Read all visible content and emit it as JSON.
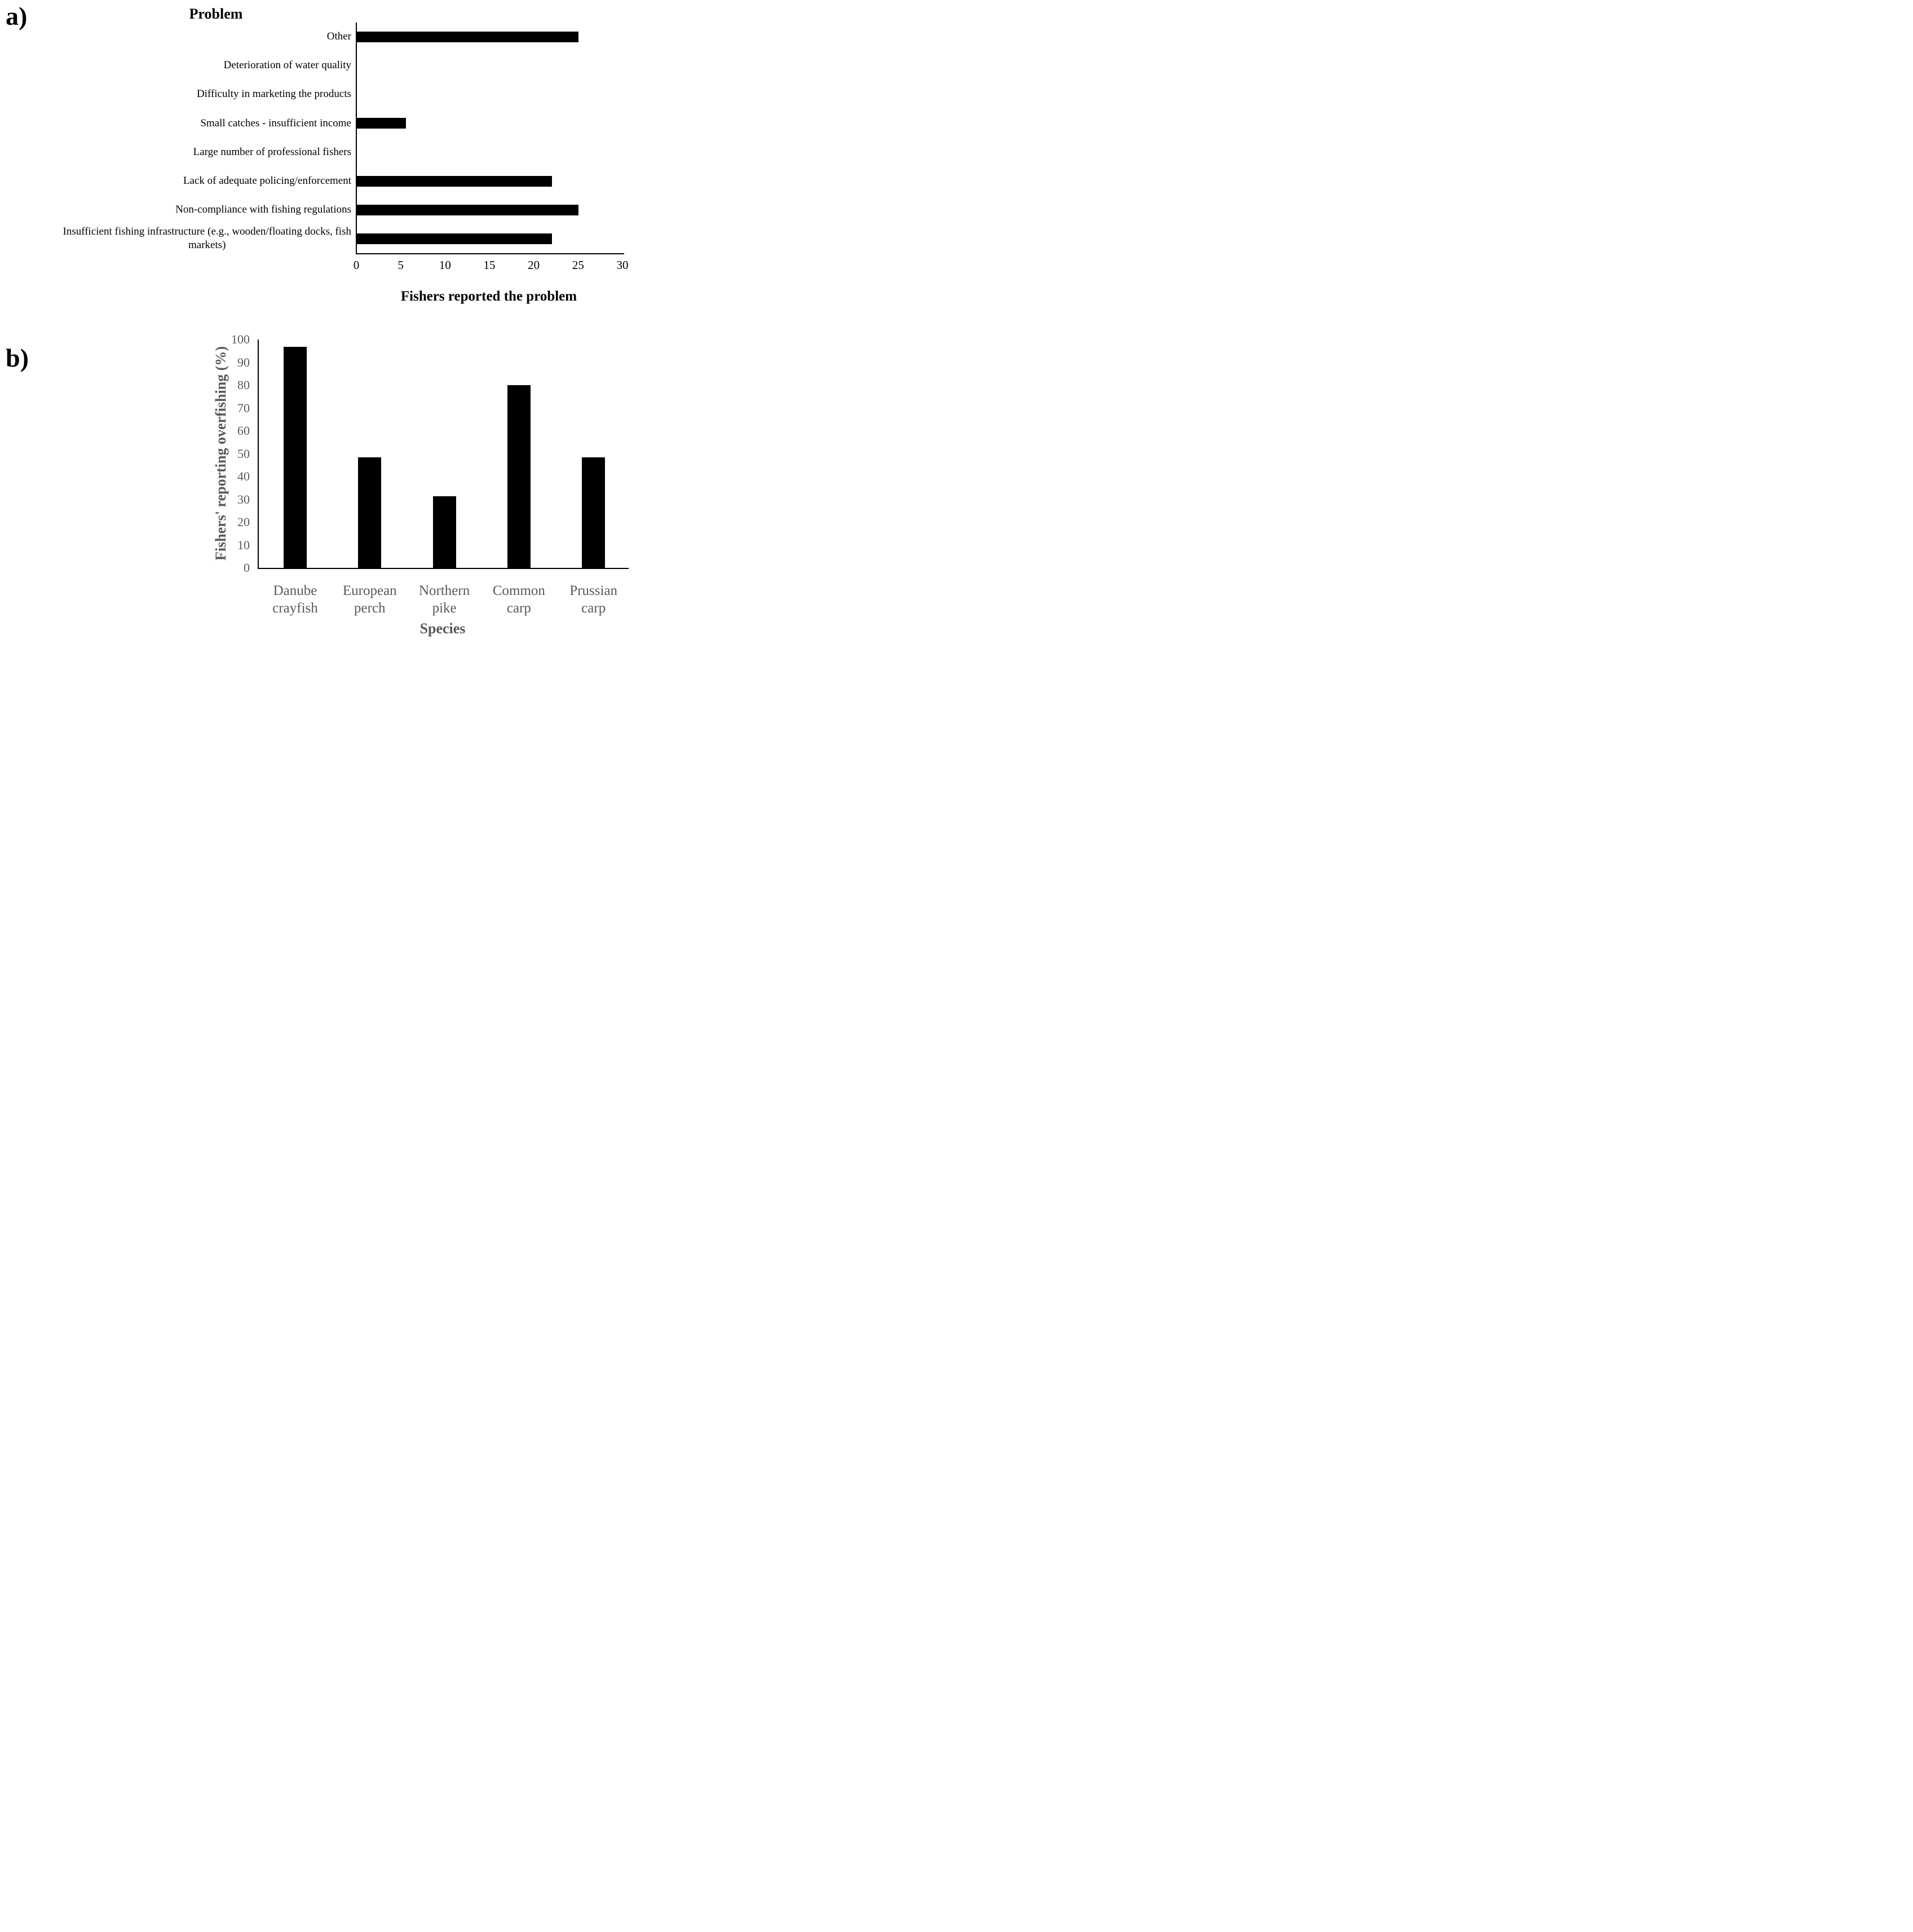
{
  "figure": {
    "panel_a_tag": "a)",
    "panel_b_tag": "b)"
  },
  "colors": {
    "bar": "#000000",
    "axis": "#000000",
    "panel_a_text": "#000000",
    "panel_b_text": "#595959"
  },
  "chart_data": [
    {
      "type": "bar",
      "orientation": "horizontal",
      "title": "Problem",
      "xlabel": "Fishers reported the problem",
      "categories": [
        "Other",
        "Deterioration of water quality",
        "Difficulty in marketing the products",
        "Small catches - insufficient income",
        "Large number of professional fishers",
        "Lack of adequate policing/enforcement",
        "Non-compliance with fishing regulations",
        "Insufficient fishing infrastructure (e.g., wooden/floating docks, fish\nmarkets)"
      ],
      "values": [
        25,
        0,
        0,
        5.5,
        0,
        22,
        25,
        22
      ],
      "xlim": [
        0,
        30
      ],
      "xticks": [
        0,
        5,
        10,
        15,
        20,
        25,
        30
      ],
      "grid": false,
      "legend": false,
      "bar_color": "#000000"
    },
    {
      "type": "bar",
      "orientation": "vertical",
      "title": "",
      "xlabel": "Species",
      "ylabel": "Fishers' reporting overfishing (%)",
      "categories": [
        "Danube\ncrayfish",
        "European\nperch",
        "Northern\npike",
        "Common\ncarp",
        "Prussian\ncarp"
      ],
      "values": [
        96.9,
        48.4,
        31.3,
        80,
        48.4
      ],
      "ylim": [
        0,
        100
      ],
      "yticks": [
        0,
        10,
        20,
        30,
        40,
        50,
        60,
        70,
        80,
        90,
        100
      ],
      "grid": false,
      "legend": false,
      "bar_color": "#000000"
    }
  ]
}
